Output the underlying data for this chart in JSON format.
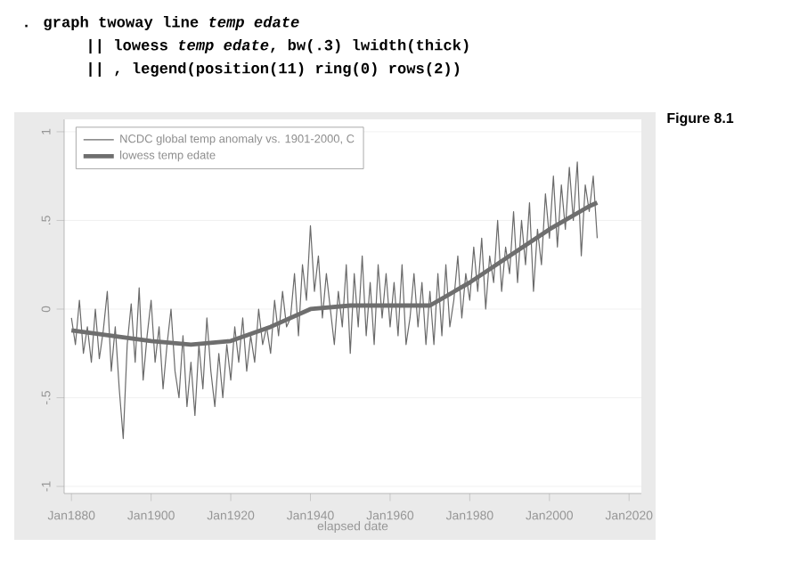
{
  "chart_data": {
    "type": "line",
    "annotations": [
      ". graph twoway line *temp edate*",
      "|| lowess *temp edate*, bw(.3) lwidth(thick)",
      "|| , legend(position(11) ring(0) rows(2))",
      "Figure 8.1"
    ],
    "xlabel": "elapsed date",
    "series": [
      {
        "name": "NCDC global temp anomaly vs. 1901-2000, C",
        "color": "#6a6a6a",
        "x": [
          "1880-01",
          "1881-01",
          "1882-01",
          "1883-01",
          "1884-01",
          "1885-01",
          "1886-01",
          "1887-01",
          "1888-01",
          "1889-01",
          "1890-01",
          "1891-01",
          "1892-01",
          "1893-01",
          "1894-01",
          "1895-01",
          "1896-01",
          "1897-01",
          "1898-01",
          "1899-01",
          "1900-01",
          "1901-01",
          "1902-01",
          "1903-01",
          "1904-01",
          "1905-01",
          "1906-01",
          "1907-01",
          "1908-01",
          "1909-01",
          "1910-01",
          "1911-01",
          "1912-01",
          "1913-01",
          "1914-01",
          "1915-01",
          "1916-01",
          "1917-01",
          "1918-01",
          "1919-01",
          "1920-01",
          "1921-01",
          "1922-01",
          "1923-01",
          "1924-01",
          "1925-01",
          "1926-01",
          "1927-01",
          "1928-01",
          "1929-01",
          "1930-01",
          "1931-01",
          "1932-01",
          "1933-01",
          "1934-01",
          "1935-01",
          "1936-01",
          "1937-01",
          "1938-01",
          "1939-01",
          "1940-01",
          "1941-01",
          "1942-01",
          "1943-01",
          "1944-01",
          "1945-01",
          "1946-01",
          "1947-01",
          "1948-01",
          "1949-01",
          "1950-01",
          "1951-01",
          "1952-01",
          "1953-01",
          "1954-01",
          "1955-01",
          "1956-01",
          "1957-01",
          "1958-01",
          "1959-01",
          "1960-01",
          "1961-01",
          "1962-01",
          "1963-01",
          "1964-01",
          "1965-01",
          "1966-01",
          "1967-01",
          "1968-01",
          "1969-01",
          "1970-01",
          "1971-01",
          "1972-01",
          "1973-01",
          "1974-01",
          "1975-01",
          "1976-01",
          "1977-01",
          "1978-01",
          "1979-01",
          "1980-01",
          "1981-01",
          "1982-01",
          "1983-01",
          "1984-01",
          "1985-01",
          "1986-01",
          "1987-01",
          "1988-01",
          "1989-01",
          "1990-01",
          "1991-01",
          "1992-01",
          "1993-01",
          "1994-01",
          "1995-01",
          "1996-01",
          "1997-01",
          "1998-01",
          "1999-01",
          "2000-01",
          "2001-01",
          "2002-01",
          "2003-01",
          "2004-01",
          "2005-01",
          "2006-01",
          "2007-01",
          "2008-01",
          "2009-01",
          "2010-01",
          "2011-01",
          "2012-01"
        ],
        "values": [
          -0.05,
          -0.2,
          0.05,
          -0.25,
          -0.1,
          -0.3,
          0.0,
          -0.28,
          -0.12,
          0.1,
          -0.35,
          -0.1,
          -0.45,
          -0.73,
          -0.2,
          0.03,
          -0.3,
          0.12,
          -0.4,
          -0.15,
          0.05,
          -0.3,
          -0.1,
          -0.45,
          -0.2,
          0.0,
          -0.35,
          -0.5,
          -0.15,
          -0.55,
          -0.3,
          -0.6,
          -0.2,
          -0.45,
          -0.05,
          -0.35,
          -0.55,
          -0.25,
          -0.5,
          -0.2,
          -0.4,
          -0.1,
          -0.3,
          -0.05,
          -0.35,
          -0.15,
          -0.3,
          0.0,
          -0.2,
          -0.1,
          -0.25,
          0.05,
          -0.15,
          0.1,
          -0.1,
          -0.05,
          0.2,
          -0.15,
          0.25,
          0.05,
          0.47,
          0.1,
          0.3,
          -0.05,
          0.2,
          0.0,
          -0.2,
          0.1,
          -0.1,
          0.25,
          -0.25,
          0.2,
          -0.1,
          0.3,
          -0.15,
          0.15,
          -0.2,
          0.25,
          -0.05,
          0.2,
          -0.1,
          0.15,
          -0.15,
          0.25,
          -0.2,
          -0.05,
          0.2,
          -0.1,
          0.15,
          -0.2,
          0.1,
          -0.2,
          0.2,
          -0.15,
          0.25,
          -0.1,
          0.05,
          0.3,
          -0.05,
          0.2,
          0.05,
          0.35,
          0.1,
          0.4,
          0.0,
          0.3,
          0.15,
          0.5,
          0.1,
          0.35,
          0.2,
          0.55,
          0.15,
          0.5,
          0.25,
          0.6,
          0.1,
          0.45,
          0.25,
          0.65,
          0.4,
          0.75,
          0.35,
          0.7,
          0.45,
          0.8,
          0.5,
          0.83,
          0.3,
          0.7,
          0.55,
          0.75,
          0.4
        ]
      },
      {
        "name": "lowess temp edate",
        "color": "#6e6e6e",
        "x": [
          "1880-01",
          "1890-01",
          "1900-01",
          "1910-01",
          "1920-01",
          "1930-01",
          "1940-01",
          "1950-01",
          "1960-01",
          "1970-01",
          "1980-01",
          "1990-01",
          "2000-01",
          "2010-01",
          "2012-01"
        ],
        "values": [
          -0.12,
          -0.15,
          -0.18,
          -0.2,
          -0.18,
          -0.1,
          0.0,
          0.02,
          0.02,
          0.02,
          0.15,
          0.3,
          0.45,
          0.58,
          0.6
        ]
      }
    ],
    "xlim": [
      "1878-03",
      "2023-02"
    ],
    "ylim": [
      -1.04,
      1.07
    ],
    "xticks": [
      {
        "value": "1880-01",
        "label": "Jan1880"
      },
      {
        "value": "1900-01",
        "label": "Jan1900"
      },
      {
        "value": "1920-01",
        "label": "Jan1920"
      },
      {
        "value": "1940-01",
        "label": "Jan1940"
      },
      {
        "value": "1960-01",
        "label": "Jan1960"
      },
      {
        "value": "1980-01",
        "label": "Jan1980"
      },
      {
        "value": "2000-01",
        "label": "Jan2000"
      },
      {
        "value": "2020-01",
        "label": "Jan2020"
      }
    ],
    "yticks": [
      -1,
      {
        "value": -0.5,
        "label": "-.5"
      },
      0,
      {
        "value": 0.5,
        "label": ".5"
      },
      1
    ],
    "grid": "y",
    "legend": "top left"
  }
}
